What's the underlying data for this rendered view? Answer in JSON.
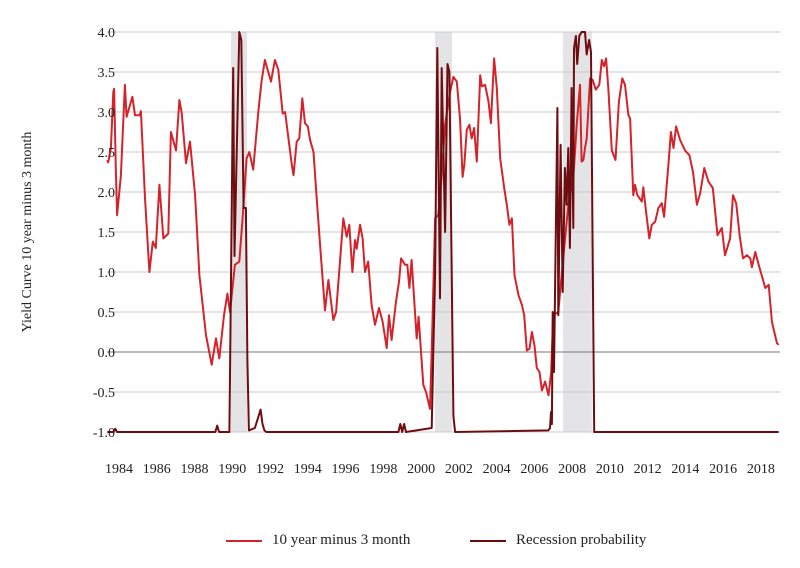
{
  "chart_data": {
    "type": "line",
    "title": "",
    "xlabel": "",
    "ylabel": "Yield Curve 10 year minus 3 month",
    "ylim": [
      -1.0,
      4.0
    ],
    "xlim": [
      1983.3,
      2019.0
    ],
    "y_ticks": [
      "-1.0",
      "-0.5",
      "0.0",
      "0.5",
      "1.0",
      "1.5",
      "2.0",
      "2.5",
      "3.0",
      "3.5",
      "4.0"
    ],
    "x_ticks": [
      "1984",
      "1986",
      "1988",
      "1990",
      "1992",
      "1994",
      "1996",
      "1998",
      "2000",
      "2002",
      "2004",
      "2006",
      "2008",
      "2010",
      "2012",
      "2014",
      "2016",
      "2018"
    ],
    "grid": true,
    "legend_position": "bottom",
    "recessions": [
      [
        1989.93,
        1990.78
      ],
      [
        2000.74,
        2001.64
      ],
      [
        2007.52,
        2009.05
      ]
    ],
    "colors": {
      "spread": "#d4232b",
      "probability": "#6e0d10",
      "recession": "#e4e4e6",
      "grid": "#c9c9c9",
      "zero": "#777777"
    },
    "series": [
      {
        "name": "10 year minus 3 month",
        "points": [
          [
            1983.38,
            2.4
          ],
          [
            1983.43,
            2.37
          ],
          [
            1983.57,
            2.55
          ],
          [
            1983.7,
            3.25
          ],
          [
            1983.74,
            3.29
          ],
          [
            1983.83,
            2.3
          ],
          [
            1983.9,
            1.71
          ],
          [
            1984.1,
            2.21
          ],
          [
            1984.31,
            3.34
          ],
          [
            1984.4,
            2.94
          ],
          [
            1984.71,
            3.19
          ],
          [
            1984.85,
            2.96
          ],
          [
            1985.09,
            2.96
          ],
          [
            1985.16,
            3.01
          ],
          [
            1985.38,
            1.9
          ],
          [
            1985.61,
            1.0
          ],
          [
            1985.79,
            1.38
          ],
          [
            1985.95,
            1.3
          ],
          [
            1986.14,
            2.09
          ],
          [
            1986.35,
            1.42
          ],
          [
            1986.61,
            1.48
          ],
          [
            1986.75,
            2.75
          ],
          [
            1987.02,
            2.52
          ],
          [
            1987.2,
            3.15
          ],
          [
            1987.32,
            2.99
          ],
          [
            1987.55,
            2.36
          ],
          [
            1987.76,
            2.63
          ],
          [
            1988.03,
            1.96
          ],
          [
            1988.26,
            0.96
          ],
          [
            1988.61,
            0.21
          ],
          [
            1988.91,
            -0.16
          ],
          [
            1989.14,
            0.17
          ],
          [
            1989.31,
            -0.08
          ],
          [
            1989.56,
            0.46
          ],
          [
            1989.74,
            0.73
          ],
          [
            1989.88,
            0.5
          ],
          [
            1990.14,
            1.09
          ],
          [
            1990.37,
            1.13
          ],
          [
            1990.55,
            1.69
          ],
          [
            1990.76,
            2.42
          ],
          [
            1990.9,
            2.5
          ],
          [
            1991.11,
            2.28
          ],
          [
            1991.38,
            3.0
          ],
          [
            1991.55,
            3.38
          ],
          [
            1991.73,
            3.65
          ],
          [
            1991.87,
            3.53
          ],
          [
            1992.05,
            3.38
          ],
          [
            1992.26,
            3.65
          ],
          [
            1992.44,
            3.53
          ],
          [
            1992.67,
            2.98
          ],
          [
            1992.8,
            3.0
          ],
          [
            1993.15,
            2.34
          ],
          [
            1993.24,
            2.21
          ],
          [
            1993.41,
            2.63
          ],
          [
            1993.55,
            2.67
          ],
          [
            1993.71,
            3.17
          ],
          [
            1993.85,
            2.86
          ],
          [
            1994.0,
            2.82
          ],
          [
            1994.12,
            2.65
          ],
          [
            1994.3,
            2.5
          ],
          [
            1994.47,
            1.92
          ],
          [
            1994.68,
            1.25
          ],
          [
            1994.91,
            0.52
          ],
          [
            1995.09,
            0.9
          ],
          [
            1995.35,
            0.4
          ],
          [
            1995.5,
            0.5
          ],
          [
            1995.88,
            1.67
          ],
          [
            1996.06,
            1.44
          ],
          [
            1996.2,
            1.59
          ],
          [
            1996.36,
            1.0
          ],
          [
            1996.5,
            1.4
          ],
          [
            1996.59,
            1.29
          ],
          [
            1996.77,
            1.59
          ],
          [
            1996.9,
            1.42
          ],
          [
            1997.03,
            1.0
          ],
          [
            1997.2,
            1.13
          ],
          [
            1997.38,
            0.59
          ],
          [
            1997.56,
            0.34
          ],
          [
            1997.77,
            0.55
          ],
          [
            1997.96,
            0.38
          ],
          [
            1998.18,
            0.05
          ],
          [
            1998.3,
            0.46
          ],
          [
            1998.44,
            0.15
          ],
          [
            1998.67,
            0.63
          ],
          [
            1998.83,
            0.88
          ],
          [
            1998.94,
            1.17
          ],
          [
            1999.15,
            1.09
          ],
          [
            1999.27,
            1.09
          ],
          [
            1999.38,
            0.8
          ],
          [
            1999.5,
            1.15
          ],
          [
            1999.77,
            0.17
          ],
          [
            1999.87,
            0.44
          ],
          [
            2000.12,
            -0.41
          ],
          [
            2000.26,
            -0.5
          ],
          [
            2000.47,
            -0.71
          ],
          [
            2000.56,
            0.0
          ],
          [
            2000.74,
            1.67
          ],
          [
            2000.91,
            1.71
          ],
          [
            2001.09,
            2.21
          ],
          [
            2001.27,
            2.84
          ],
          [
            2001.53,
            3.25
          ],
          [
            2001.71,
            3.44
          ],
          [
            2001.89,
            3.38
          ],
          [
            2002.06,
            2.92
          ],
          [
            2002.2,
            2.19
          ],
          [
            2002.29,
            2.34
          ],
          [
            2002.42,
            2.78
          ],
          [
            2002.56,
            2.84
          ],
          [
            2002.68,
            2.67
          ],
          [
            2002.81,
            2.8
          ],
          [
            2002.95,
            2.38
          ],
          [
            2003.13,
            3.46
          ],
          [
            2003.22,
            3.32
          ],
          [
            2003.39,
            3.34
          ],
          [
            2003.57,
            3.13
          ],
          [
            2003.7,
            2.86
          ],
          [
            2003.87,
            3.67
          ],
          [
            2004.01,
            3.3
          ],
          [
            2004.19,
            2.42
          ],
          [
            2004.4,
            2.05
          ],
          [
            2004.54,
            1.84
          ],
          [
            2004.68,
            1.59
          ],
          [
            2004.81,
            1.67
          ],
          [
            2004.95,
            0.96
          ],
          [
            2005.16,
            0.71
          ],
          [
            2005.34,
            0.59
          ],
          [
            2005.46,
            0.46
          ],
          [
            2005.6,
            0.02
          ],
          [
            2005.74,
            0.04
          ],
          [
            2005.87,
            0.25
          ],
          [
            2006.01,
            0.08
          ],
          [
            2006.13,
            -0.2
          ],
          [
            2006.27,
            -0.25
          ],
          [
            2006.4,
            -0.48
          ],
          [
            2006.57,
            -0.37
          ],
          [
            2006.75,
            -0.54
          ],
          [
            2006.89,
            -0.25
          ],
          [
            2007.0,
            0.46
          ],
          [
            2007.27,
            0.5
          ],
          [
            2007.53,
            1.17
          ],
          [
            2007.8,
            1.84
          ],
          [
            2008.06,
            2.17
          ],
          [
            2008.24,
            2.84
          ],
          [
            2008.42,
            3.34
          ],
          [
            2008.5,
            2.38
          ],
          [
            2008.6,
            2.4
          ],
          [
            2008.68,
            2.55
          ],
          [
            2008.77,
            2.67
          ],
          [
            2008.95,
            3.42
          ],
          [
            2009.09,
            3.4
          ],
          [
            2009.25,
            3.28
          ],
          [
            2009.44,
            3.34
          ],
          [
            2009.57,
            3.65
          ],
          [
            2009.69,
            3.57
          ],
          [
            2009.8,
            3.67
          ],
          [
            2009.92,
            3.28
          ],
          [
            2010.1,
            2.52
          ],
          [
            2010.3,
            2.4
          ],
          [
            2010.48,
            3.13
          ],
          [
            2010.66,
            3.42
          ],
          [
            2010.8,
            3.34
          ],
          [
            2010.98,
            2.96
          ],
          [
            2011.07,
            2.92
          ],
          [
            2011.24,
            1.96
          ],
          [
            2011.33,
            2.09
          ],
          [
            2011.46,
            1.96
          ],
          [
            2011.69,
            1.88
          ],
          [
            2011.77,
            2.06
          ],
          [
            2011.92,
            1.75
          ],
          [
            2012.09,
            1.42
          ],
          [
            2012.22,
            1.59
          ],
          [
            2012.4,
            1.63
          ],
          [
            2012.57,
            1.8
          ],
          [
            2012.75,
            1.86
          ],
          [
            2012.87,
            1.69
          ],
          [
            2013.1,
            2.34
          ],
          [
            2013.23,
            2.75
          ],
          [
            2013.37,
            2.55
          ],
          [
            2013.51,
            2.82
          ],
          [
            2013.72,
            2.65
          ],
          [
            2013.98,
            2.52
          ],
          [
            2014.21,
            2.46
          ],
          [
            2014.4,
            2.25
          ],
          [
            2014.61,
            1.84
          ],
          [
            2014.78,
            1.98
          ],
          [
            2015.0,
            2.3
          ],
          [
            2015.22,
            2.13
          ],
          [
            2015.45,
            2.05
          ],
          [
            2015.7,
            1.46
          ],
          [
            2015.93,
            1.55
          ],
          [
            2016.1,
            1.21
          ],
          [
            2016.37,
            1.42
          ],
          [
            2016.52,
            1.96
          ],
          [
            2016.69,
            1.86
          ],
          [
            2016.87,
            1.46
          ],
          [
            2017.05,
            1.17
          ],
          [
            2017.26,
            1.21
          ],
          [
            2017.44,
            1.17
          ],
          [
            2017.52,
            1.06
          ],
          [
            2017.7,
            1.25
          ],
          [
            2017.88,
            1.09
          ],
          [
            2018.23,
            0.8
          ],
          [
            2018.41,
            0.84
          ],
          [
            2018.58,
            0.38
          ],
          [
            2018.71,
            0.25
          ],
          [
            2018.85,
            0.11
          ],
          [
            2018.94,
            0.09
          ]
        ]
      },
      {
        "name": "Recession probability",
        "points": [
          [
            1983.38,
            -1.0
          ],
          [
            1983.7,
            -1.0
          ],
          [
            1983.8,
            -0.96
          ],
          [
            1983.9,
            -1.0
          ],
          [
            1989.1,
            -1.0
          ],
          [
            1989.2,
            -0.92
          ],
          [
            1989.3,
            -1.0
          ],
          [
            1989.85,
            -1.0
          ],
          [
            1990.05,
            3.55
          ],
          [
            1990.12,
            1.2
          ],
          [
            1990.37,
            4.0
          ],
          [
            1990.48,
            3.9
          ],
          [
            1990.6,
            1.8
          ],
          [
            1990.72,
            1.8
          ],
          [
            1990.8,
            -0.1
          ],
          [
            1990.88,
            -0.98
          ],
          [
            1991.2,
            -0.95
          ],
          [
            1991.5,
            -0.72
          ],
          [
            1991.6,
            -0.9
          ],
          [
            1991.7,
            -0.98
          ],
          [
            1991.8,
            -1.0
          ],
          [
            1998.8,
            -1.0
          ],
          [
            1998.9,
            -0.9
          ],
          [
            1999.0,
            -1.0
          ],
          [
            1999.1,
            -0.9
          ],
          [
            1999.2,
            -1.0
          ],
          [
            2000.56,
            -0.95
          ],
          [
            2000.74,
            1.0
          ],
          [
            2000.86,
            3.8
          ],
          [
            2001.0,
            0.67
          ],
          [
            2001.09,
            3.55
          ],
          [
            2001.27,
            1.5
          ],
          [
            2001.4,
            3.6
          ],
          [
            2001.5,
            3.5
          ],
          [
            2001.62,
            1.0
          ],
          [
            2001.71,
            -0.8
          ],
          [
            2001.8,
            -1.0
          ],
          [
            2006.74,
            -0.98
          ],
          [
            2006.83,
            -0.95
          ],
          [
            2006.88,
            -0.75
          ],
          [
            2006.93,
            -0.9
          ],
          [
            2006.97,
            0.5
          ],
          [
            2007.04,
            -0.25
          ],
          [
            2007.22,
            3.05
          ],
          [
            2007.27,
            0.46
          ],
          [
            2007.39,
            2.59
          ],
          [
            2007.5,
            0.75
          ],
          [
            2007.62,
            2.3
          ],
          [
            2007.71,
            1.84
          ],
          [
            2007.8,
            2.55
          ],
          [
            2007.88,
            1.3
          ],
          [
            2007.97,
            3.3
          ],
          [
            2008.06,
            1.55
          ],
          [
            2008.1,
            3.8
          ],
          [
            2008.2,
            3.95
          ],
          [
            2008.27,
            3.6
          ],
          [
            2008.38,
            3.95
          ],
          [
            2008.5,
            4.0
          ],
          [
            2008.68,
            4.0
          ],
          [
            2008.77,
            3.72
          ],
          [
            2008.9,
            3.9
          ],
          [
            2009.0,
            3.75
          ],
          [
            2009.09,
            1.17
          ],
          [
            2009.17,
            -1.0
          ],
          [
            2018.94,
            -1.0
          ]
        ]
      }
    ]
  }
}
